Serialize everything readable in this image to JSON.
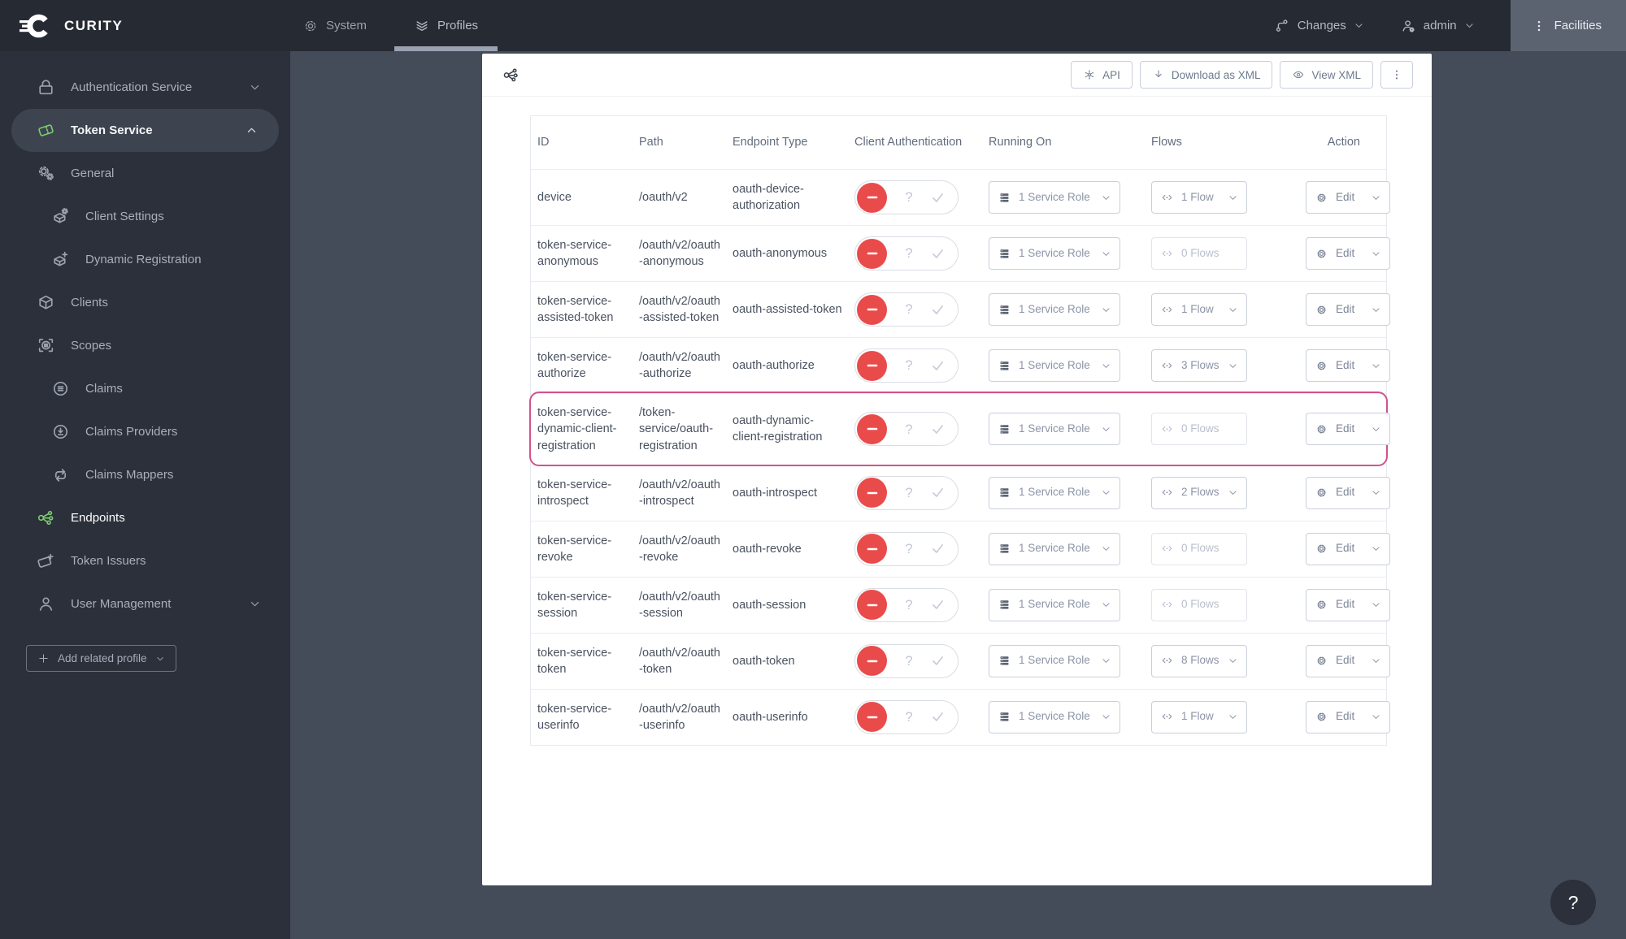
{
  "navbar": {
    "brand": "CURITY",
    "system_label": "System",
    "profiles_label": "Profiles",
    "changes_label": "Changes",
    "admin_label": "admin",
    "facilities_label": "Facilities"
  },
  "sidebar": {
    "items": [
      {
        "label": "Authentication Service",
        "icon": "lock-icon",
        "level": 0,
        "chevron": "down"
      },
      {
        "label": "Token Service",
        "icon": "ticket-icon",
        "icon_color": "green",
        "level": 0,
        "chevron": "up",
        "active": true
      },
      {
        "label": "General",
        "icon": "gears-icon",
        "level": 0
      },
      {
        "label": "Client Settings",
        "icon": "box-gear-icon",
        "level": 1
      },
      {
        "label": "Dynamic Registration",
        "icon": "box-plus-icon",
        "level": 1
      },
      {
        "label": "Clients",
        "icon": "box-icon",
        "level": 0
      },
      {
        "label": "Scopes",
        "icon": "scopes-icon",
        "level": 0
      },
      {
        "label": "Claims",
        "icon": "claims-icon",
        "level": 1
      },
      {
        "label": "Claims Providers",
        "icon": "claims-providers-icon",
        "level": 1
      },
      {
        "label": "Claims Mappers",
        "icon": "claims-mappers-icon",
        "level": 1
      },
      {
        "label": "Endpoints",
        "icon": "share-icon",
        "icon_color": "green",
        "level": 0,
        "selected": true
      },
      {
        "label": "Token Issuers",
        "icon": "ticket-plus-icon",
        "level": 0
      },
      {
        "label": "User Management",
        "icon": "user-icon",
        "level": 0,
        "chevron": "down"
      }
    ],
    "add_profile_label": "Add related profile"
  },
  "toolbar": {
    "api_label": "API",
    "download_label": "Download as XML",
    "view_xml_label": "View XML"
  },
  "table": {
    "headers": {
      "id": "ID",
      "path": "Path",
      "endpoint_type": "Endpoint Type",
      "client_auth": "Client Authentication",
      "running_on": "Running On",
      "flows": "Flows",
      "action": "Action"
    },
    "edit_label": "Edit",
    "client_auth_unknown_glyph": "?",
    "rows": [
      {
        "id": "device",
        "path": "/oauth/v2",
        "endpoint_type": "oauth-device-authorization",
        "client_auth": "off",
        "running_on": "1 Service Role",
        "flows": "1 Flow",
        "flows_enabled": true,
        "highlighted": false
      },
      {
        "id": "token-service-anonymous",
        "path": "/oauth/v2/oauth-anonymous",
        "endpoint_type": "oauth-anonymous",
        "client_auth": "off",
        "running_on": "1 Service Role",
        "flows": "0 Flows",
        "flows_enabled": false,
        "highlighted": false
      },
      {
        "id": "token-service-assisted-token",
        "path": "/oauth/v2/oauth-assisted-token",
        "endpoint_type": "oauth-assisted-token",
        "client_auth": "off",
        "running_on": "1 Service Role",
        "flows": "1 Flow",
        "flows_enabled": true,
        "highlighted": false
      },
      {
        "id": "token-service-authorize",
        "path": "/oauth/v2/oauth-authorize",
        "endpoint_type": "oauth-authorize",
        "client_auth": "off",
        "running_on": "1 Service Role",
        "flows": "3 Flows",
        "flows_enabled": true,
        "highlighted": false
      },
      {
        "id": "token-service-dynamic-client-registration",
        "path": "/token-service/oauth-registration",
        "endpoint_type": "oauth-dynamic-client-registration",
        "client_auth": "off",
        "running_on": "1 Service Role",
        "flows": "0 Flows",
        "flows_enabled": false,
        "highlighted": true
      },
      {
        "id": "token-service-introspect",
        "path": "/oauth/v2/oauth-introspect",
        "endpoint_type": "oauth-introspect",
        "client_auth": "off",
        "running_on": "1 Service Role",
        "flows": "2 Flows",
        "flows_enabled": true,
        "highlighted": false
      },
      {
        "id": "token-service-revoke",
        "path": "/oauth/v2/oauth-revoke",
        "endpoint_type": "oauth-revoke",
        "client_auth": "off",
        "running_on": "1 Service Role",
        "flows": "0 Flows",
        "flows_enabled": false,
        "highlighted": false
      },
      {
        "id": "token-service-session",
        "path": "/oauth/v2/oauth-session",
        "endpoint_type": "oauth-session",
        "client_auth": "off",
        "running_on": "1 Service Role",
        "flows": "0 Flows",
        "flows_enabled": false,
        "highlighted": false
      },
      {
        "id": "token-service-token",
        "path": "/oauth/v2/oauth-token",
        "endpoint_type": "oauth-token",
        "client_auth": "off",
        "running_on": "1 Service Role",
        "flows": "8 Flows",
        "flows_enabled": true,
        "highlighted": false
      },
      {
        "id": "token-service-userinfo",
        "path": "/oauth/v2/oauth-userinfo",
        "endpoint_type": "oauth-userinfo",
        "client_auth": "off",
        "running_on": "1 Service Role",
        "flows": "1 Flow",
        "flows_enabled": true,
        "highlighted": false
      }
    ]
  },
  "help_button_label": "?",
  "colors": {
    "accent_green": "#7cc96f",
    "toggle_red": "#e94b4b",
    "highlight_pink": "#d1538e",
    "navbar_bg": "#262a32",
    "sidebar_bg": "#2b303a",
    "main_bg": "#454c59"
  }
}
